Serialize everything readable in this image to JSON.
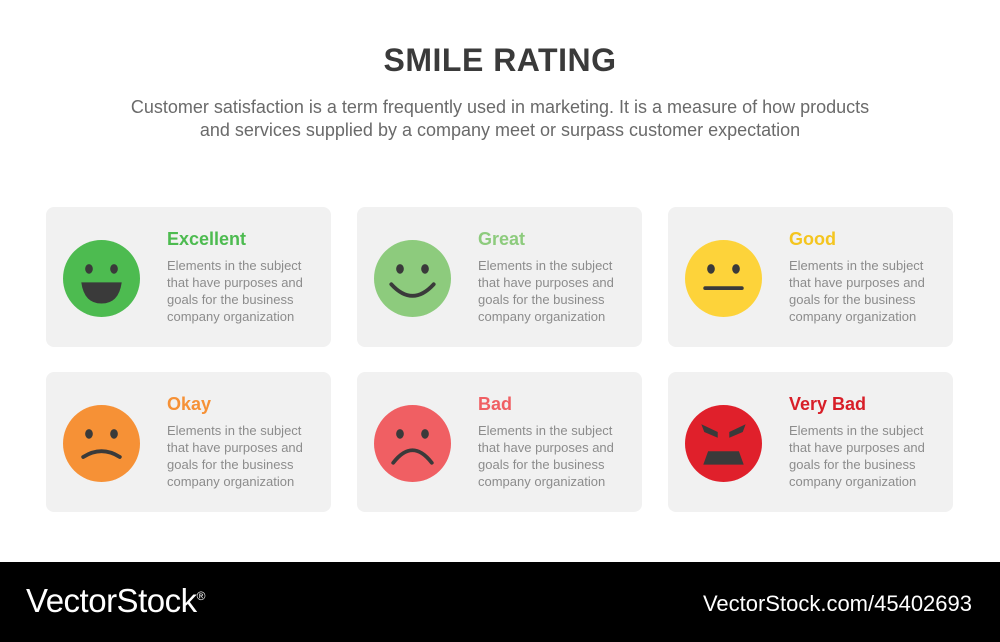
{
  "header": {
    "title": "SMILE RATING",
    "subtitle_line1": "Customer satisfaction is a term frequently used in marketing. It is a measure of how products",
    "subtitle_line2": "and services supplied by a company meet or surpass customer expectation"
  },
  "ratings": [
    {
      "label": "Excellent",
      "color": "#4dbb50",
      "text_color": "#4dbb50",
      "face": "big-smile",
      "desc": [
        "Elements in the subject",
        "that have purposes and",
        "goals for the business",
        "company organization"
      ]
    },
    {
      "label": "Great",
      "color": "#8dcb7d",
      "text_color": "#8dcb7d",
      "face": "smile",
      "desc": [
        "Elements in the subject",
        "that have purposes and",
        "goals for the business",
        "company organization"
      ]
    },
    {
      "label": "Good",
      "color": "#fdd33a",
      "text_color": "#f4c51f",
      "face": "neutral",
      "desc": [
        "Elements in the subject",
        "that have purposes and",
        "goals for the business",
        "company organization"
      ]
    },
    {
      "label": "Okay",
      "color": "#f69136",
      "text_color": "#f69136",
      "face": "slight-frown",
      "desc": [
        "Elements in the subject",
        "that have purposes and",
        "goals for the business",
        "company organization"
      ]
    },
    {
      "label": "Bad",
      "color": "#f05f63",
      "text_color": "#f05f63",
      "face": "frown",
      "desc": [
        "Elements in the subject",
        "that have purposes and",
        "goals for the business",
        "company organization"
      ]
    },
    {
      "label": "Very Bad",
      "color": "#e0202b",
      "text_color": "#d81e28",
      "face": "angry",
      "desc": [
        "Elements in the subject",
        "that have purposes and",
        "goals for the business",
        "company organization"
      ]
    }
  ],
  "footer": {
    "brand": "VectorStock",
    "registered_mark": "®",
    "url": "VectorStock.com/45402693"
  }
}
